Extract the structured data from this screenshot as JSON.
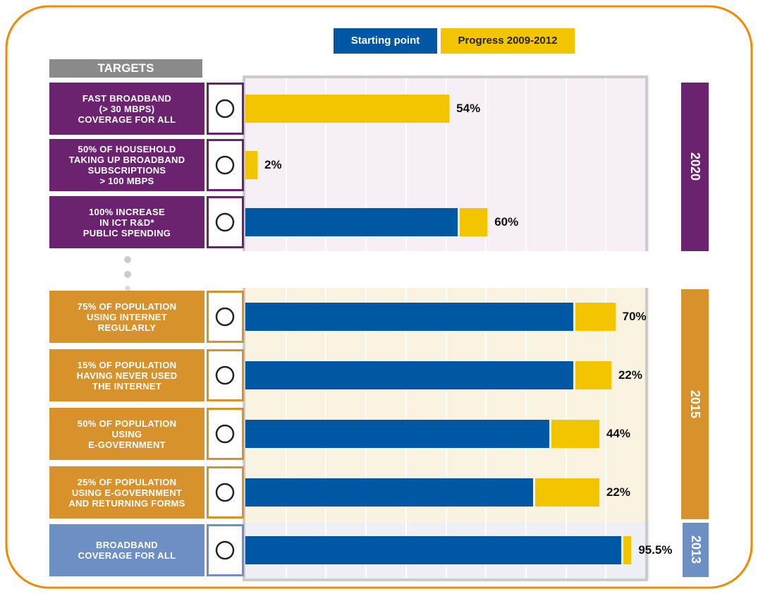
{
  "chart_data": {
    "type": "bar",
    "header": "TARGETS",
    "categories": [
      "FAST BROADBAND\n(> 30 MBPS)\nCOVERAGE FOR ALL",
      "50% OF HOUSEHOLD\nTAKING UP BROADBAND\nSUBSCRIPTIONS\n> 100 MBPS",
      "100% INCREASE\nIN ICT R&D*\nPUBLIC SPENDING",
      "75% OF POPULATION\nUSING INTERNET\nREGULARLY",
      "15% OF POPULATION\nHAVING NEVER USED\nTHE INTERNET",
      "50% OF POPULATION\nUSING\nE-GOVERNMENT",
      "25% OF POPULATION\nUSING E-GOVERNMENT\nAND RETURNING FORMS",
      "BROADBAND\nCOVERAGE FOR ALL"
    ],
    "series": [
      {
        "name": "Starting point",
        "color": "#0057a3",
        "values": [
          0,
          0,
          53,
          82,
          82,
          76,
          72,
          94
        ]
      },
      {
        "name": "Progress 2009-2012",
        "color": "#f2c500",
        "values": [
          51,
          3,
          7,
          10,
          9,
          12,
          16,
          2
        ]
      }
    ],
    "achieved": [
      "54%",
      "2%",
      "60%",
      "70%",
      "22%",
      "44%",
      "22%",
      "95.5%"
    ],
    "groups": [
      {
        "label": "2020",
        "color": "#6b2370"
      },
      {
        "label": "2015",
        "color": "#d8922c"
      },
      {
        "label": "2013",
        "color": "#6d8fc4"
      }
    ],
    "xlim": [
      0,
      100
    ]
  }
}
